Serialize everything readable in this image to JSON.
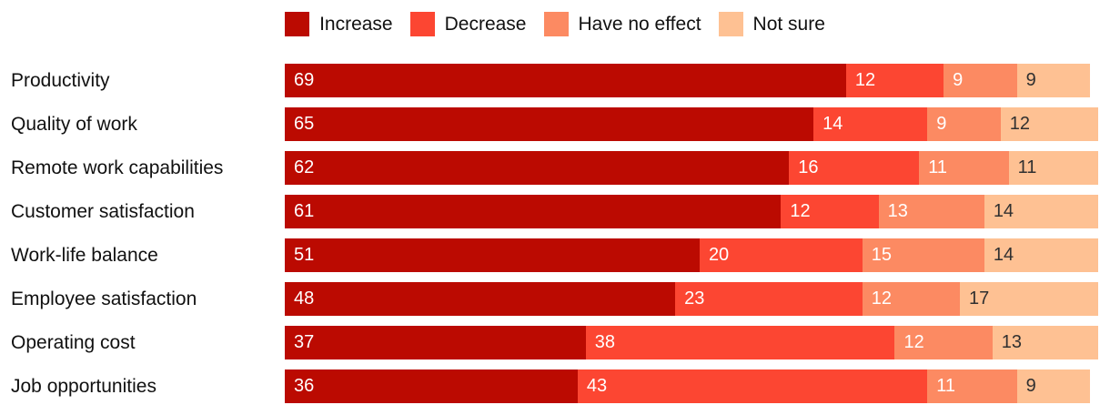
{
  "chart_data": {
    "type": "bar",
    "orientation": "horizontal",
    "stacked": true,
    "title": "",
    "xlabel": "",
    "ylabel": "",
    "xlim": [
      0,
      100
    ],
    "grid": false,
    "axes_visible": false,
    "legend_position": "top-center",
    "value_labels": "inside-left",
    "categories": [
      "Productivity",
      "Quality of work",
      "Remote work capabilities",
      "Customer satisfaction",
      "Work-life balance",
      "Employee satisfaction",
      "Operating cost",
      "Job opportunities"
    ],
    "series": [
      {
        "name": "Increase",
        "color": "#bb0a01",
        "label_color": "#ffffff",
        "values": [
          69,
          65,
          62,
          61,
          51,
          48,
          37,
          36
        ]
      },
      {
        "name": "Decrease",
        "color": "#fc4632",
        "label_color": "#ffffff",
        "values": [
          12,
          14,
          16,
          12,
          20,
          23,
          38,
          43
        ]
      },
      {
        "name": "Have no effect",
        "color": "#fc8a62",
        "label_color": "#ffffff",
        "values": [
          9,
          9,
          11,
          13,
          15,
          12,
          12,
          11
        ]
      },
      {
        "name": "Not sure",
        "color": "#fec193",
        "label_color": "#303030",
        "values": [
          9,
          12,
          11,
          14,
          14,
          17,
          13,
          9
        ]
      }
    ]
  },
  "colors": {
    "background": "#ffffff",
    "category_label": "#111111",
    "legend_label": "#111111"
  }
}
